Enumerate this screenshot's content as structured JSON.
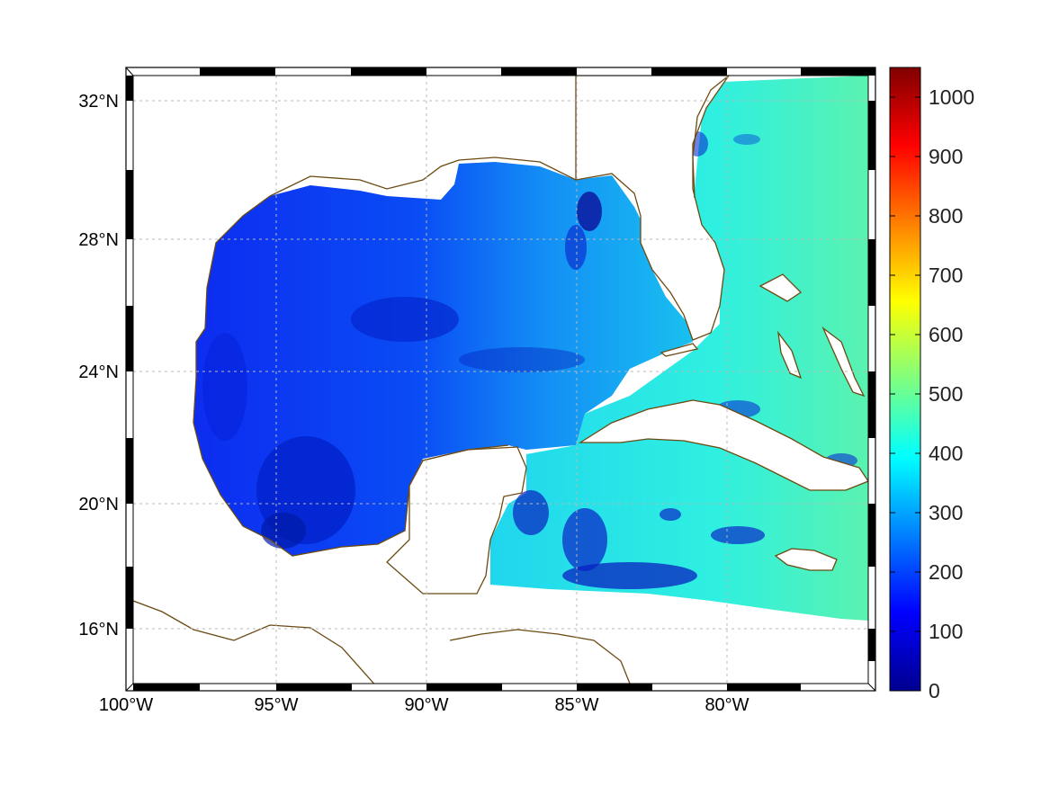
{
  "chart_data": {
    "type": "heatmap",
    "title": "",
    "xlabel": "",
    "ylabel": "",
    "xlim_deg_lon": [
      -100,
      -75
    ],
    "ylim_deg_lat": [
      14.2,
      33
    ],
    "x_ticks": [
      "100°W",
      "95°W",
      "90°W",
      "85°W",
      "80°W"
    ],
    "y_ticks": [
      "32°N",
      "28°N",
      "24°N",
      "20°N",
      "16°N"
    ],
    "grid": true,
    "colorbar": {
      "colormap": "jet",
      "range": [
        0,
        1050
      ],
      "ticks": [
        "0",
        "100",
        "200",
        "300",
        "400",
        "500",
        "600",
        "700",
        "800",
        "900",
        "1000"
      ],
      "placement": "right"
    },
    "coastline_color": "#6b4a12",
    "land_color": "#ffffff",
    "field_summary": [
      {
        "region": "Western and central Gulf of Mexico",
        "value_range": [
          80,
          200
        ]
      },
      {
        "region": "Eastern Gulf of Mexico",
        "value_range": [
          200,
          300
        ]
      },
      {
        "region": "Florida Straits and north of Cuba",
        "value_range": [
          300,
          400
        ]
      },
      {
        "region": "Atlantic east of Florida",
        "value_range": [
          350,
          480
        ]
      },
      {
        "region": "Caribbean west and south of Cuba",
        "value_range": [
          80,
          360
        ]
      }
    ]
  }
}
